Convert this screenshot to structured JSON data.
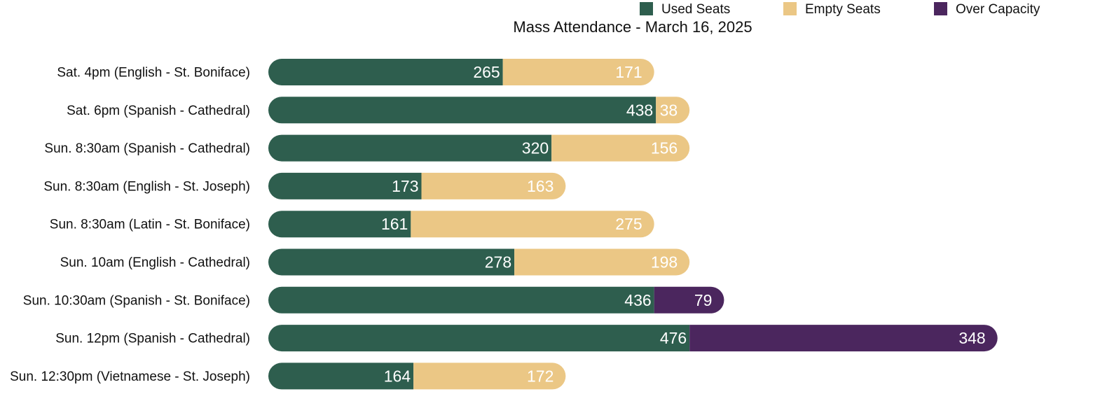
{
  "chart_data": {
    "type": "bar",
    "orientation": "horizontal",
    "stacked": true,
    "title": "Mass Attendance - March 16, 2025",
    "xlabel": "",
    "ylabel": "",
    "categories": [
      "Sat. 4pm (English - St. Boniface)",
      "Sat. 6pm (Spanish - Cathedral)",
      "Sun. 8:30am (Spanish - Cathedral)",
      "Sun. 8:30am (English - St. Joseph)",
      "Sun. 8:30am (Latin - St. Boniface)",
      "Sun. 10am (English - Cathedral)",
      "Sun. 10:30am (Spanish - St. Boniface)",
      "Sun. 12pm (Spanish - Cathedral)",
      "Sun. 12:30pm (Vietnamese - St. Joseph)"
    ],
    "series": [
      {
        "name": "Used Seats",
        "color": "#2e5e4e",
        "values": [
          265,
          438,
          320,
          173,
          161,
          278,
          436,
          476,
          164
        ]
      },
      {
        "name": "Empty Seats",
        "color": "#ebc785",
        "values": [
          171,
          38,
          156,
          163,
          275,
          198,
          0,
          0,
          172
        ]
      },
      {
        "name": "Over Capacity",
        "color": "#4b265e",
        "values": [
          0,
          0,
          0,
          0,
          0,
          0,
          79,
          348,
          0
        ]
      }
    ],
    "xlim": [
      0,
      824
    ],
    "grid": false,
    "legend_position": "top-right"
  }
}
